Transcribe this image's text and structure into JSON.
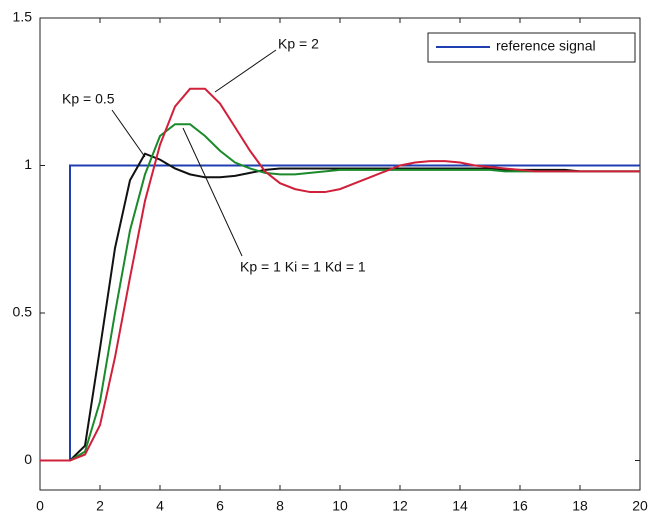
{
  "chart_data": {
    "type": "line",
    "xlim": [
      0,
      20
    ],
    "xticks": [
      0,
      2,
      4,
      6,
      8,
      10,
      12,
      14,
      16,
      18,
      20
    ],
    "ylim": [
      -0.1,
      1.5
    ],
    "yticks": [
      0,
      0.5,
      1,
      1.5
    ],
    "legend_position": "upper right",
    "series": [
      {
        "name": "reference signal",
        "color": "#1f3fb0",
        "legend": true,
        "x": [
          0,
          1,
          1,
          20
        ],
        "values": [
          0,
          0,
          1,
          1
        ]
      },
      {
        "name": "Kp = 0.5",
        "color": "#111111",
        "legend": false,
        "x": [
          0,
          0.5,
          1,
          1.5,
          2,
          2.5,
          3,
          3.5,
          4,
          4.5,
          5,
          5.5,
          6,
          6.5,
          7,
          7.5,
          8,
          8.5,
          9,
          9.5,
          10,
          10.5,
          11,
          11.5,
          12,
          12.5,
          13,
          13.5,
          14,
          14.5,
          15,
          15.5,
          16,
          16.5,
          17,
          17.5,
          18,
          18.5,
          19,
          19.5,
          20
        ],
        "values": [
          0,
          0,
          0,
          0.05,
          0.38,
          0.72,
          0.95,
          1.04,
          1.02,
          0.99,
          0.97,
          0.96,
          0.96,
          0.965,
          0.975,
          0.985,
          0.99,
          0.99,
          0.99,
          0.99,
          0.99,
          0.99,
          0.99,
          0.99,
          0.99,
          0.99,
          0.99,
          0.99,
          0.99,
          0.99,
          0.99,
          0.985,
          0.985,
          0.985,
          0.985,
          0.985,
          0.98,
          0.98,
          0.98,
          0.98,
          0.98
        ]
      },
      {
        "name": "Kp = 1  Ki = 1  Kd = 1",
        "color": "#1a8a2a",
        "legend": false,
        "x": [
          0,
          0.5,
          1,
          1.5,
          2,
          2.5,
          3,
          3.5,
          4,
          4.5,
          5,
          5.5,
          6,
          6.5,
          7,
          7.5,
          8,
          8.5,
          9,
          9.5,
          10,
          10.5,
          11,
          11.5,
          12,
          12.5,
          13,
          13.5,
          14,
          14.5,
          15,
          15.5,
          16,
          16.5,
          17,
          17.5,
          18,
          18.5,
          19,
          19.5,
          20
        ],
        "values": [
          0,
          0,
          0,
          0.03,
          0.2,
          0.5,
          0.78,
          0.97,
          1.1,
          1.14,
          1.14,
          1.1,
          1.05,
          1.01,
          0.99,
          0.975,
          0.97,
          0.97,
          0.975,
          0.98,
          0.985,
          0.985,
          0.985,
          0.985,
          0.985,
          0.985,
          0.985,
          0.985,
          0.985,
          0.985,
          0.985,
          0.98,
          0.98,
          0.98,
          0.98,
          0.98,
          0.98,
          0.98,
          0.98,
          0.98,
          0.98
        ]
      },
      {
        "name": "Kp = 2",
        "color": "#d0203a",
        "legend": false,
        "x": [
          0,
          0.5,
          1,
          1.5,
          2,
          2.5,
          3,
          3.5,
          4,
          4.5,
          5,
          5.5,
          6,
          6.5,
          7,
          7.5,
          8,
          8.5,
          9,
          9.5,
          10,
          10.5,
          11,
          11.5,
          12,
          12.5,
          13,
          13.5,
          14,
          14.5,
          15,
          15.5,
          16,
          16.5,
          17,
          17.5,
          18,
          18.5,
          19,
          19.5,
          20
        ],
        "values": [
          0,
          0,
          0,
          0.02,
          0.12,
          0.35,
          0.62,
          0.88,
          1.07,
          1.2,
          1.26,
          1.26,
          1.21,
          1.13,
          1.05,
          0.98,
          0.94,
          0.92,
          0.91,
          0.91,
          0.92,
          0.94,
          0.96,
          0.98,
          1.0,
          1.01,
          1.015,
          1.015,
          1.01,
          1.0,
          0.995,
          0.99,
          0.985,
          0.98,
          0.98,
          0.98,
          0.98,
          0.98,
          0.98,
          0.98,
          0.98
        ]
      }
    ]
  }
}
